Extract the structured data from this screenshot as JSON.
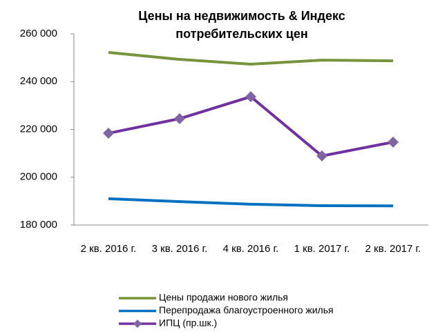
{
  "chart_data": {
    "type": "line",
    "title": "Цены на недвижимость & Индекс потребительских цен",
    "categories": [
      "2 кв. 2016 г.",
      "3 кв. 2016 г.",
      "4 кв. 2016 г.",
      "1 кв. 2017 г.",
      "2 кв. 2017 г."
    ],
    "series": [
      {
        "name": "Цены продажи нового жилья",
        "color": "#77933c",
        "values": [
          252200,
          249300,
          247300,
          249000,
          248700
        ]
      },
      {
        "name": "Перепродажа благоустроенного жилья",
        "color": "#0070c0",
        "values": [
          191000,
          189800,
          188700,
          188100,
          188000
        ]
      },
      {
        "name": "ИПЦ (пр.шк.)",
        "color": "#7030a0",
        "marker": "diamond",
        "marker_color": "#8064a2",
        "values": [
          218400,
          224500,
          233700,
          208900,
          214700
        ]
      }
    ],
    "ylim": [
      180000,
      260000
    ],
    "yticks": [
      {
        "value": 180000,
        "label": "180 000"
      },
      {
        "value": 200000,
        "label": "200 000"
      },
      {
        "value": 220000,
        "label": "220 000"
      },
      {
        "value": 240000,
        "label": "240 000"
      },
      {
        "value": 260000,
        "label": "260 000"
      }
    ],
    "grid": false,
    "legend": "bottom"
  }
}
